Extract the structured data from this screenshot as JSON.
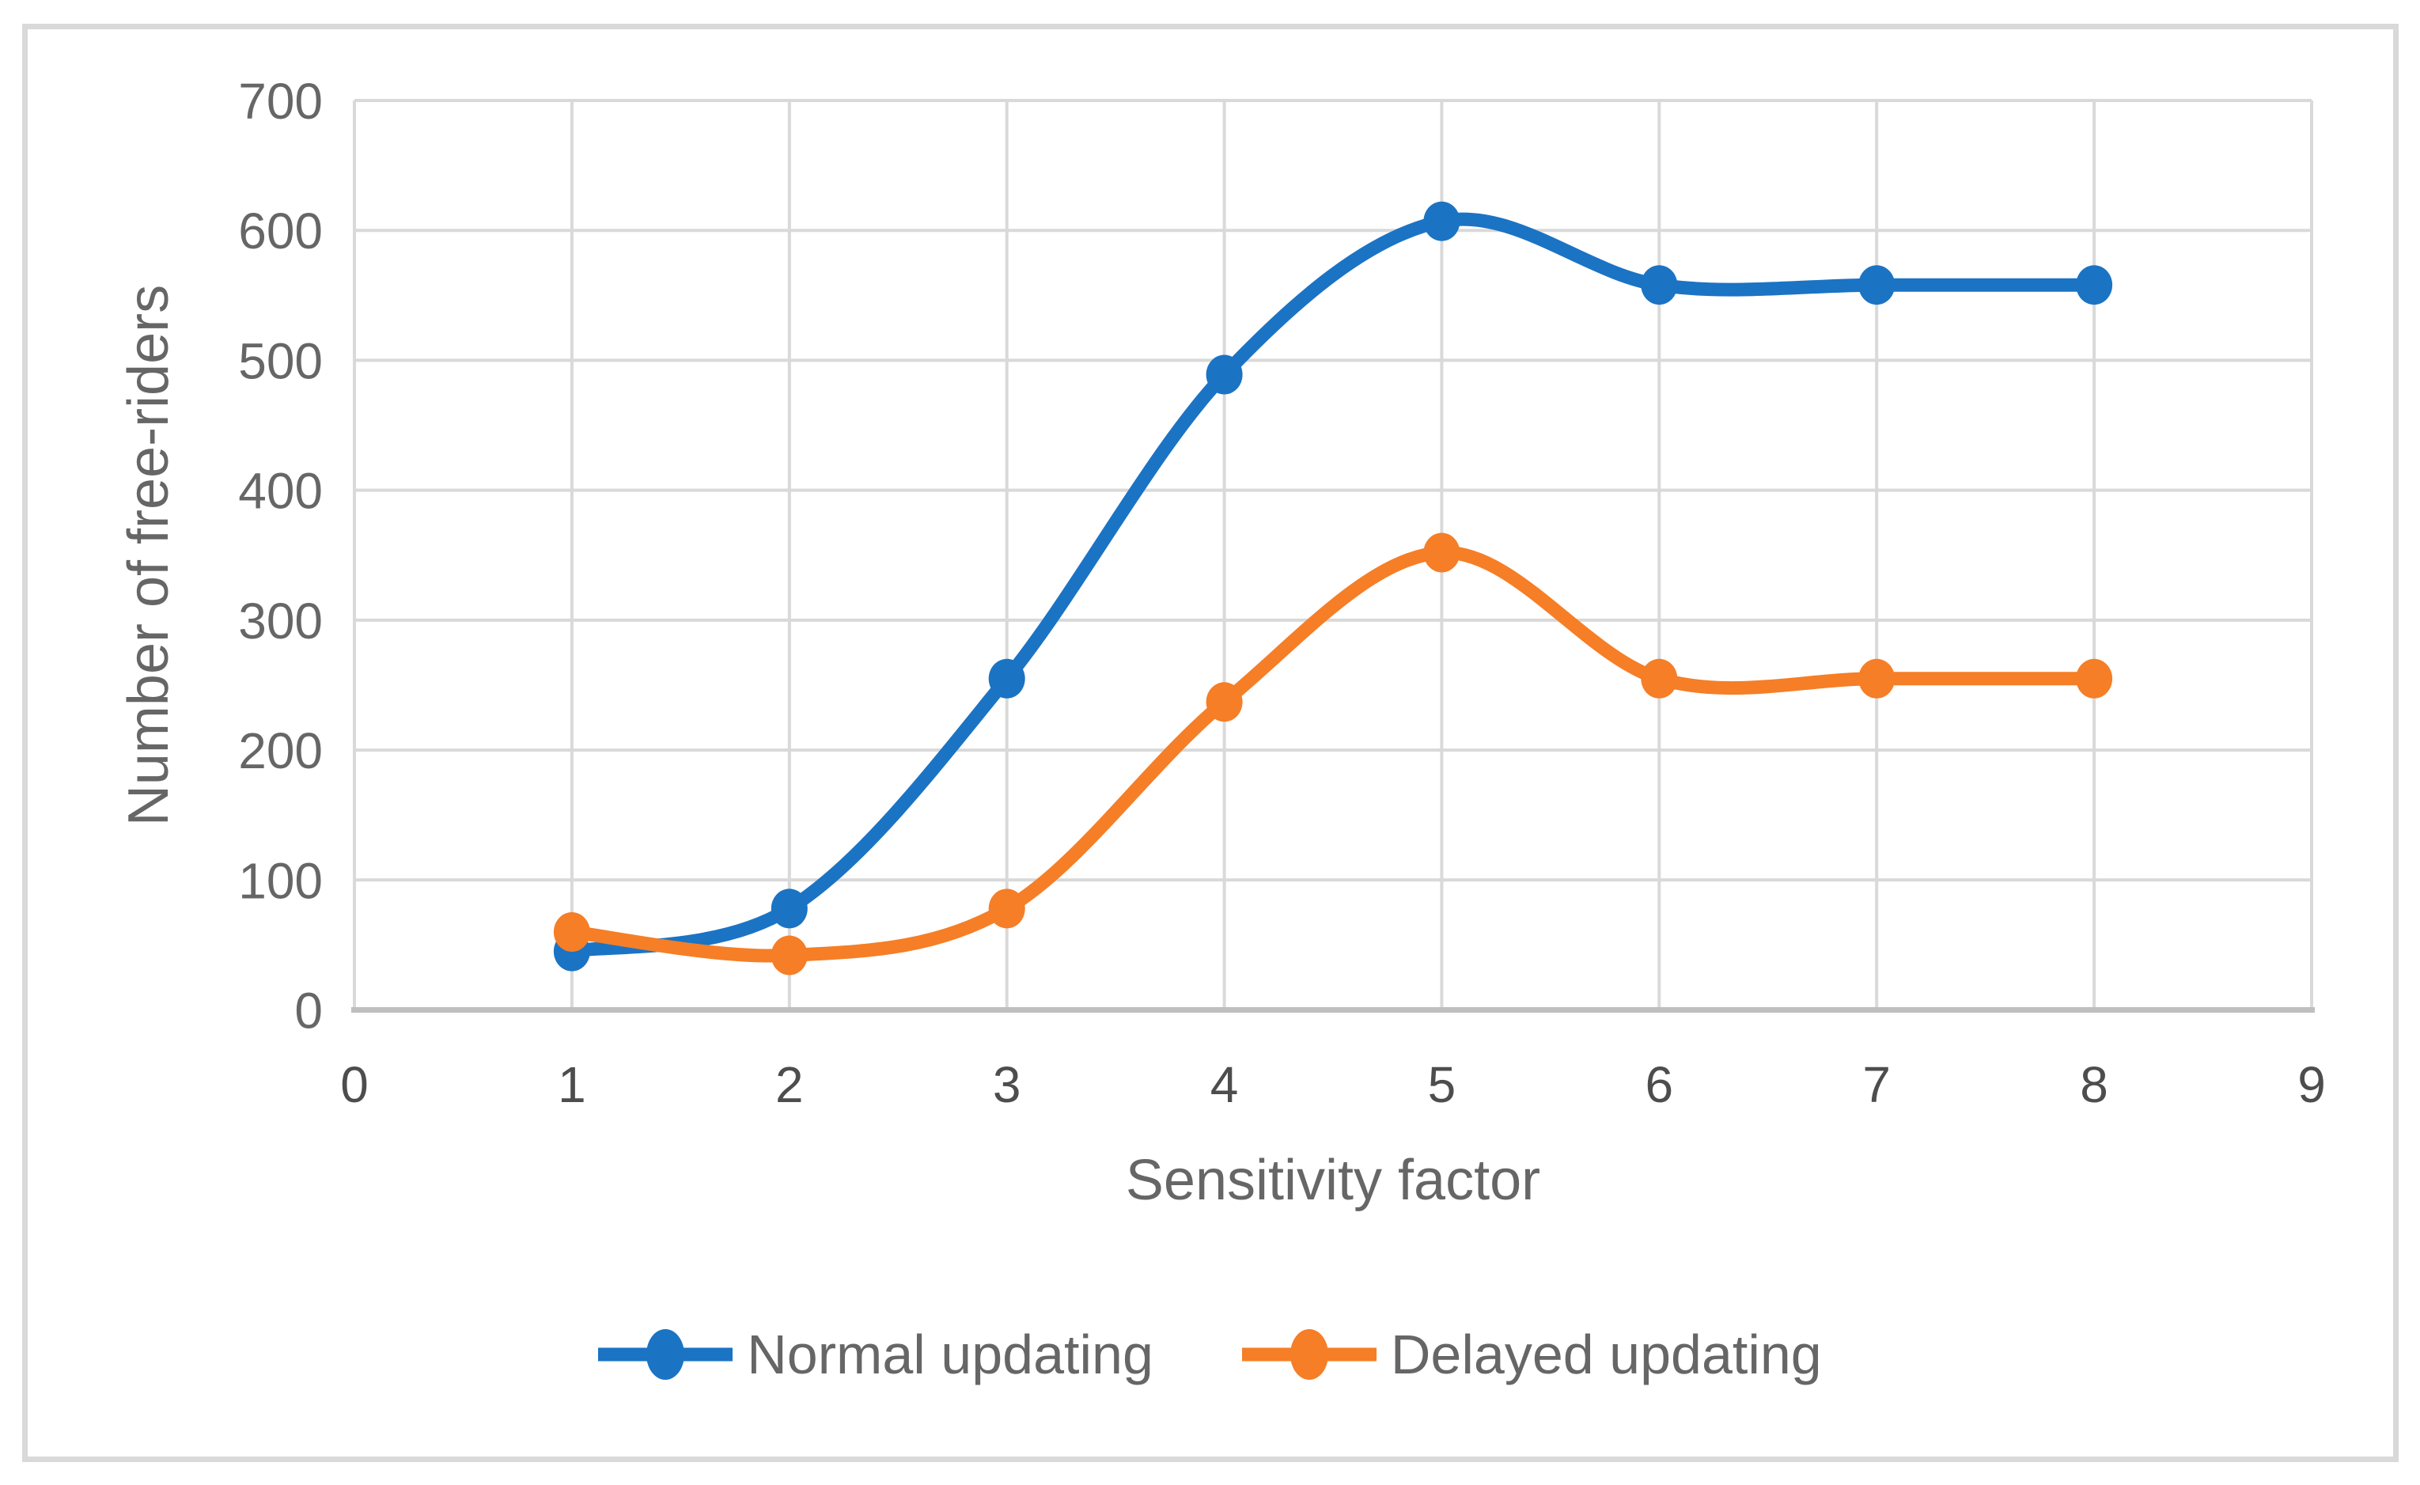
{
  "figure": {
    "background_color": "#ffffff",
    "border_color": "#d9d9d9",
    "gridline_color": "#d9d9d9",
    "axis_line_color": "#bfbfbf",
    "tick_label_color": "#4d4d4d",
    "title_color": "#666666"
  },
  "chart_data": {
    "type": "line",
    "title": "",
    "xlabel": "Sensitivity factor",
    "ylabel": "Number of free-riders",
    "x": [
      1,
      2,
      3,
      4,
      5,
      6,
      7,
      8
    ],
    "series": [
      {
        "name": "Normal updating",
        "color": "#1b73c4",
        "values": [
          45,
          78,
          255,
          489,
          607,
          558,
          558,
          558
        ]
      },
      {
        "name": "Delayed updating",
        "color": "#f57e27",
        "values": [
          60,
          42,
          78,
          237,
          352,
          255,
          255,
          255
        ]
      }
    ],
    "xlim": [
      0,
      9
    ],
    "ylim": [
      0,
      700
    ],
    "x_ticks": [
      0,
      1,
      2,
      3,
      4,
      5,
      6,
      7,
      8,
      9
    ],
    "y_ticks": [
      0,
      100,
      200,
      300,
      400,
      500,
      600,
      700
    ],
    "grid": true,
    "line_smoothing": true,
    "marker": "circle",
    "legend_position": "bottom"
  }
}
